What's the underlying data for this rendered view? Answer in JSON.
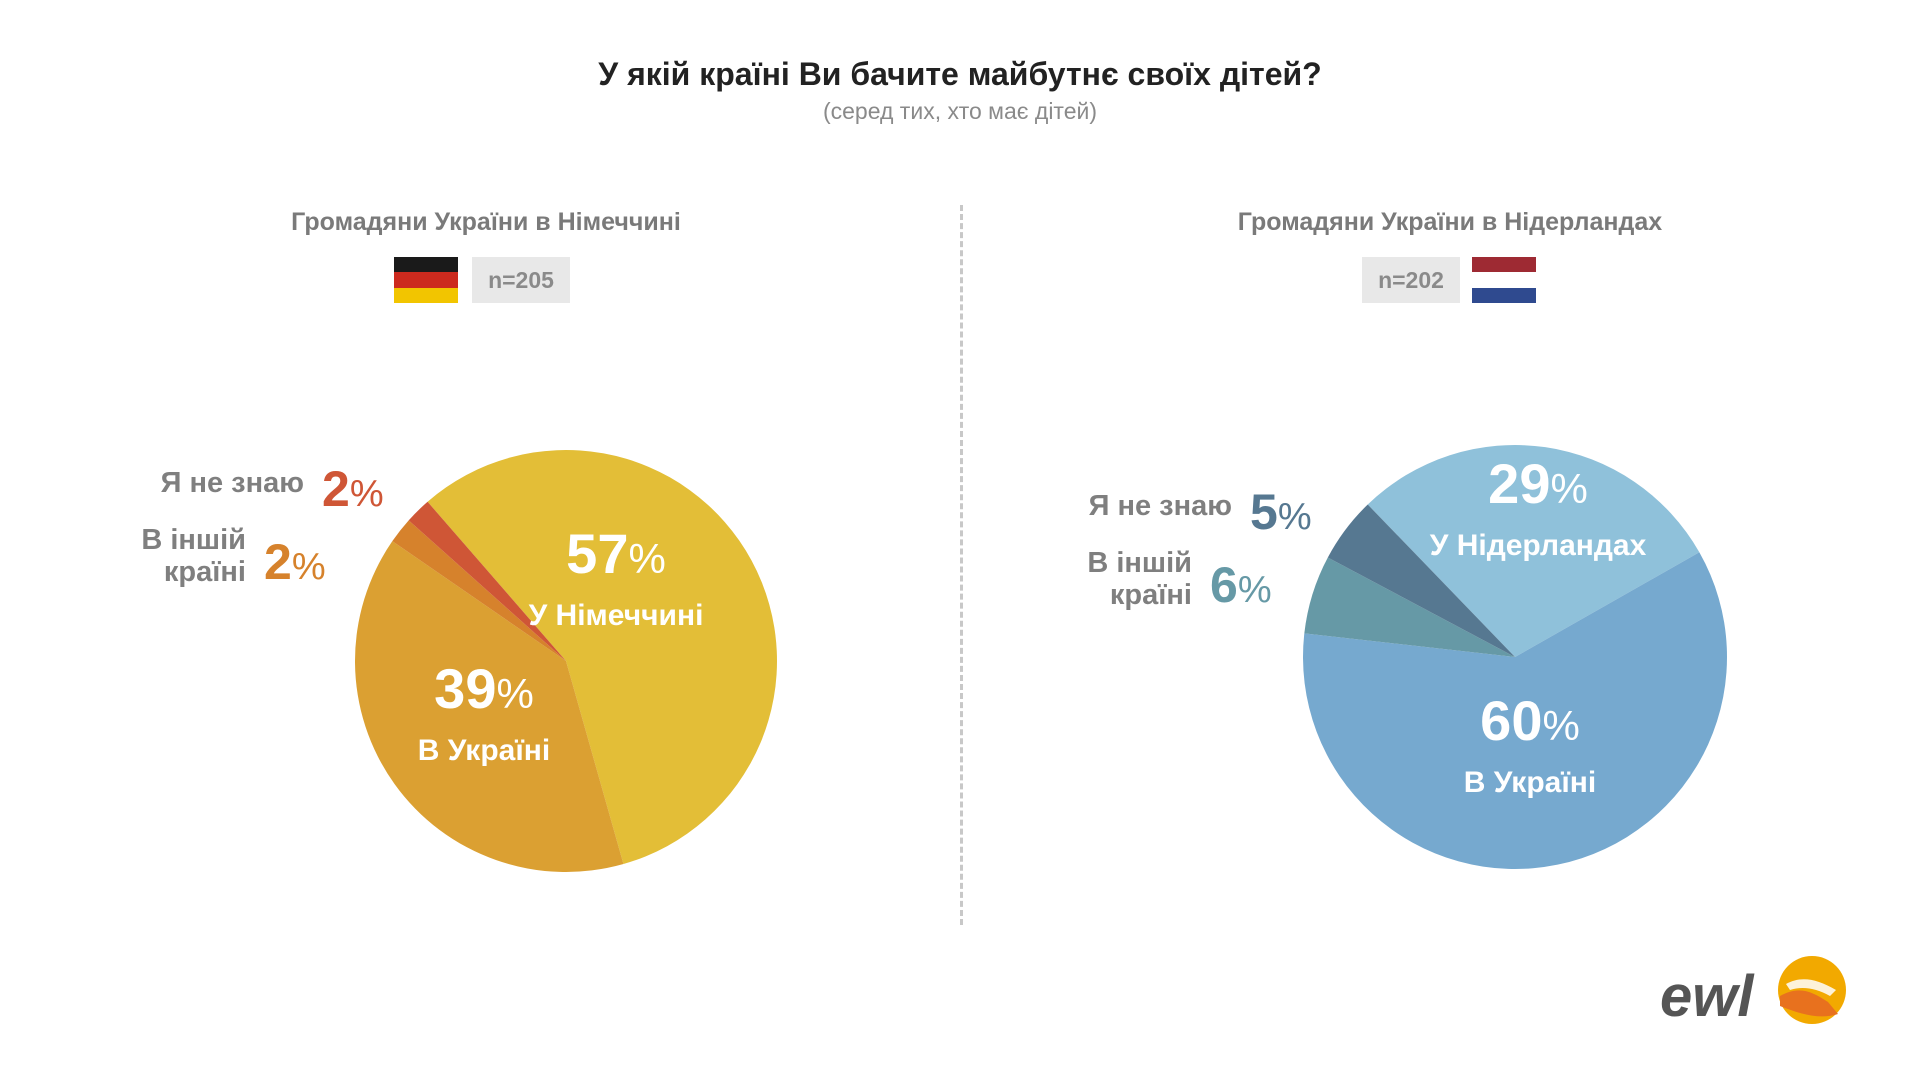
{
  "header": {
    "title": "У якій країні Ви бачите майбутнє своїх дітей?",
    "subtitle": "(серед тих, хто має дітей)"
  },
  "panels": [
    {
      "heading": "Громадяни України в Німеччині",
      "n_label": "n=205",
      "flag_colors": [
        "#1a1a1a",
        "#cc2a1e",
        "#f2c500"
      ]
    },
    {
      "heading": "Громадяни України в Нідерландах",
      "n_label": "n=202",
      "flag_colors": [
        "#9e2a33",
        "#ffffff",
        "#2f4a8f"
      ]
    }
  ],
  "chart_data": [
    {
      "type": "pie",
      "title": "Громадяни України в Німеччині",
      "unit": "%",
      "slices": [
        {
          "label": "У Німеччині",
          "value": 57,
          "color": "#e3be37"
        },
        {
          "label": "В Україні",
          "value": 39,
          "color": "#dba032"
        },
        {
          "label": "В іншій країні",
          "value": 2,
          "color": "#d6822c"
        },
        {
          "label": "Я не знаю",
          "value": 2,
          "color": "#cf5636"
        }
      ]
    },
    {
      "type": "pie",
      "title": "Громадяни України в Нідерландах",
      "unit": "%",
      "slices": [
        {
          "label": "У Нідерландах",
          "value": 29,
          "color": "#8fc1da"
        },
        {
          "label": "В Україні",
          "value": 60,
          "color": "#76a9cf"
        },
        {
          "label": "В іншій країні",
          "value": 6,
          "color": "#6699a6"
        },
        {
          "label": "Я не знаю",
          "value": 5,
          "color": "#567891"
        }
      ]
    }
  ],
  "logo": {
    "text": "ewl",
    "colors": [
      "#f2a900",
      "#e8711e",
      "#555555"
    ]
  }
}
